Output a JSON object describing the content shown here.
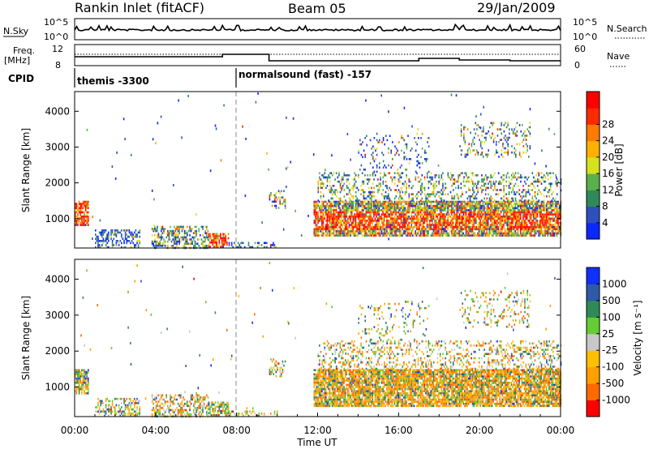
{
  "header": {
    "station": "Rankin Inlet (fitACF)",
    "beam": "Beam 05",
    "date": "29/Jan/2009"
  },
  "top_panels": {
    "nsky_label": "N.Sky",
    "nsky_ticks": [
      "10^5",
      "10^0"
    ],
    "nsearch_label": "N.Search",
    "nsearch_ticks": [
      "10^5",
      "10^0"
    ],
    "freq_label_1": "Freq.",
    "freq_label_2": "[MHz]",
    "freq_ticks": [
      "12",
      "8"
    ],
    "nave_label": "Nave",
    "nave_ticks": [
      "60",
      "0"
    ],
    "cpid_label": "CPID",
    "cpid_segments": [
      {
        "label": "themis -3300",
        "start_hour": 0
      },
      {
        "label": "normalsound (fast) -157",
        "start_hour": 8
      }
    ]
  },
  "colors": {
    "power_scale": [
      "#0a28ff",
      "#2f4fc0",
      "#2f8a5a",
      "#5ab04a",
      "#d6e21e",
      "#ffb000",
      "#ff7a00",
      "#ff2a00",
      "#ff0000"
    ],
    "velocity_scale": [
      "#ff0000",
      "#ff6a00",
      "#ff9f00",
      "#ffc000",
      "#c8c8c8",
      "#66cc33",
      "#2e8b57",
      "#2e5aa8",
      "#1030ff"
    ]
  },
  "chart_data": [
    {
      "type": "heatmap",
      "name": "power",
      "ylabel": "Slant Range [km]",
      "yticks": [
        "1000",
        "2000",
        "3000",
        "4000"
      ],
      "ylim": [
        180,
        4550
      ],
      "xlim": [
        0,
        24
      ],
      "colorbar_label": "Power [dB]",
      "colorbar_ticks": [
        "4",
        "8",
        "12",
        "16",
        "20",
        "24",
        "28"
      ],
      "colorbar_range": [
        0,
        32
      ]
    },
    {
      "type": "heatmap",
      "name": "velocity",
      "ylabel": "Slant Range [km]",
      "yticks": [
        "1000",
        "2000",
        "3000",
        "4000"
      ],
      "ylim": [
        180,
        4550
      ],
      "xlim": [
        0,
        24
      ],
      "colorbar_label": "Velocity [m s⁻¹]",
      "colorbar_ticks": [
        "-1000",
        "-500",
        "-100",
        "-25",
        "25",
        "100",
        "500",
        "1000"
      ]
    }
  ],
  "xaxis": {
    "label": "Time UT",
    "ticks": [
      "00:00",
      "04:00",
      "08:00",
      "12:00",
      "16:00",
      "20:00",
      "00:00"
    ]
  }
}
